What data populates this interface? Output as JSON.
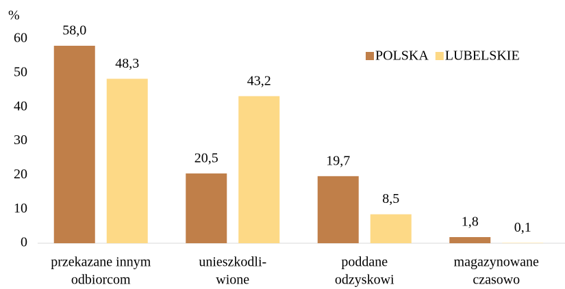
{
  "chart_data": {
    "type": "bar",
    "y_label": "%",
    "categories": [
      [
        "przekazane innym",
        "odbiorcom"
      ],
      [
        "unieszkodli-",
        "wione"
      ],
      [
        "poddane",
        "odzyskowi"
      ],
      [
        "magazynowane",
        "czasowo"
      ]
    ],
    "series": [
      {
        "name": "POLSKA",
        "color": "#c07f49",
        "values": [
          58.0,
          20.5,
          19.7,
          1.8
        ],
        "value_labels": [
          "58,0",
          "20,5",
          "19,7",
          "1,8"
        ]
      },
      {
        "name": "LUBELSKIE",
        "color": "#fdd986",
        "values": [
          48.3,
          43.2,
          8.5,
          0.1
        ],
        "value_labels": [
          "48,3",
          "43,2",
          "8,5",
          "0,1"
        ]
      }
    ],
    "ylim": [
      0,
      60
    ],
    "yticks": [
      0,
      10,
      20,
      30,
      40,
      50,
      60
    ],
    "grid": false,
    "legend": "top-right"
  }
}
